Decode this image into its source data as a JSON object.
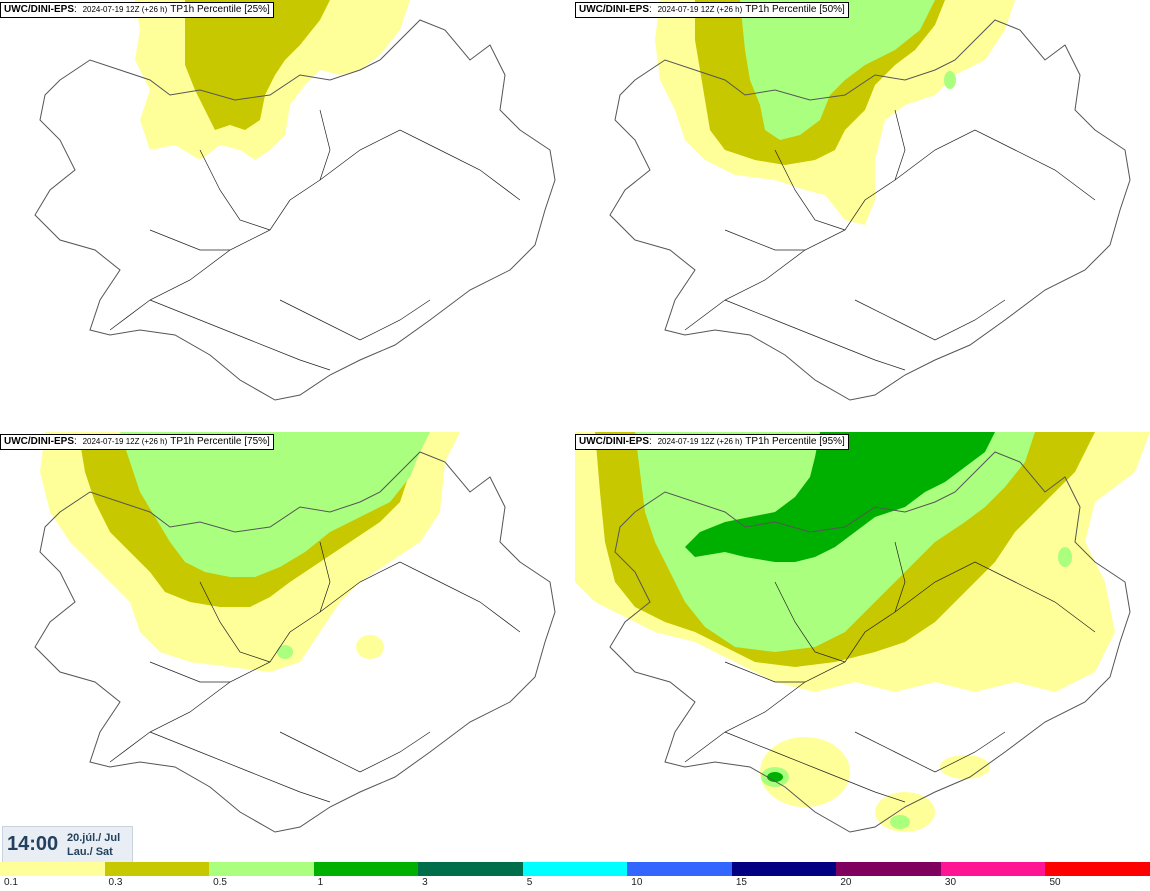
{
  "panels": [
    {
      "source": "UWC/DINI-EPS",
      "run": "2024-07-19 12Z (+26 h)",
      "product": "TP1h Percentile [25%]"
    },
    {
      "source": "UWC/DINI-EPS",
      "run": "2024-07-19 12Z (+26 h)",
      "product": "TP1h Percentile [50%]"
    },
    {
      "source": "UWC/DINI-EPS",
      "run": "2024-07-19 12Z (+26 h)",
      "product": "TP1h Percentile [75%]"
    },
    {
      "source": "UWC/DINI-EPS",
      "run": "2024-07-19 12Z (+26 h)",
      "product": "TP1h Percentile [95%]"
    }
  ],
  "valid_time": {
    "clock": "14:00",
    "date_line1": "20.júl./ Jul",
    "date_line2": "Lau./ Sat"
  },
  "legend": {
    "colors": [
      "#ffff99",
      "#c8c800",
      "#aaff7f",
      "#00b000",
      "#006e4a",
      "#00ffff",
      "#3366ff",
      "#000080",
      "#800060",
      "#ff1493",
      "#ff0000"
    ],
    "labels": [
      "0.1",
      "0.3",
      "0.5",
      "1",
      "3",
      "5",
      "10",
      "15",
      "20",
      "30",
      "50"
    ]
  },
  "map_colors": {
    "outline": "#555555",
    "roads": "#222222",
    "background": "#ffffff"
  }
}
